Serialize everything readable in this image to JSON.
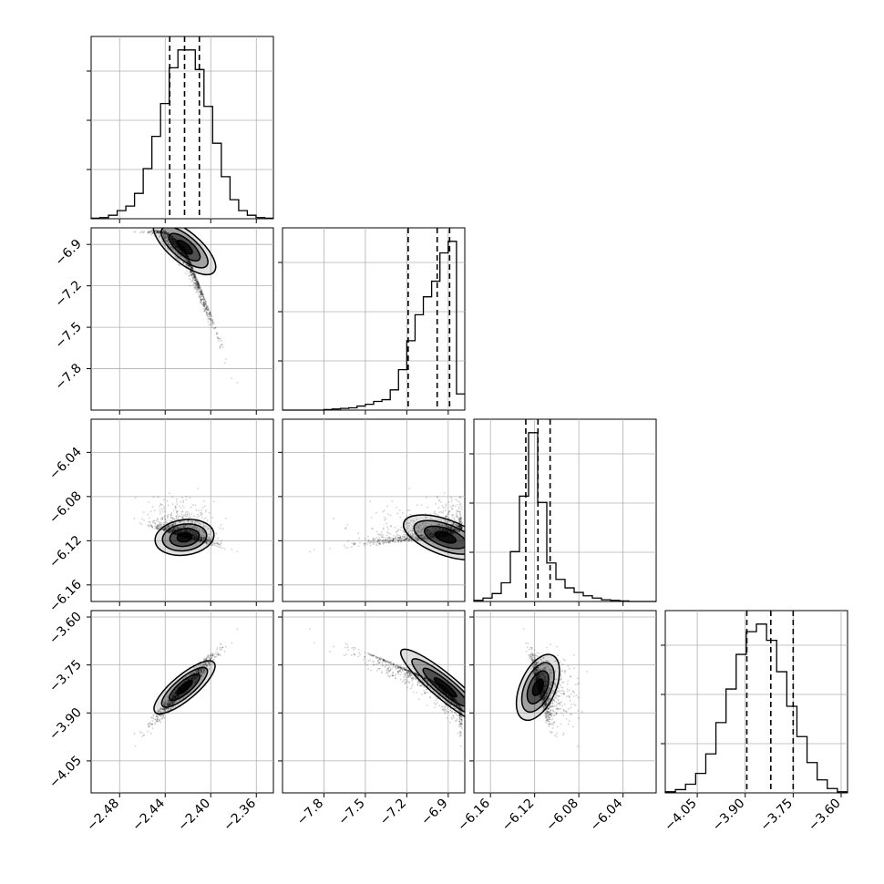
{
  "chart_data": {
    "type": "scatter",
    "subtype": "corner-plot",
    "n_params": 4,
    "grid": true,
    "colors": {
      "line": "#000000",
      "grid": "#b0b0b0",
      "points": "#000000",
      "density_fill": "#000000"
    },
    "params": [
      {
        "tick_labels": [
          "−2.48",
          "−2.44",
          "−2.40",
          "−2.36"
        ],
        "ticks": [
          -2.48,
          -2.44,
          -2.4,
          -2.36
        ],
        "range": [
          -2.505,
          -2.345
        ],
        "quantiles": [
          -2.436,
          -2.423,
          -2.41
        ],
        "peak": -2.423,
        "sigma": 0.013
      },
      {
        "tick_labels": [
          "−7.8",
          "−7.5",
          "−7.2",
          "−6.9"
        ],
        "ticks": [
          -7.8,
          -7.5,
          -7.2,
          -6.9
        ],
        "range": [
          -8.1,
          -6.78
        ],
        "quantiles": [
          -7.19,
          -6.98,
          -6.89
        ],
        "peak": -6.92,
        "sigma": 0.16
      },
      {
        "tick_labels": [
          "−6.16",
          "−6.12",
          "−6.08",
          "−6.04"
        ],
        "ticks": [
          -6.16,
          -6.12,
          -6.08,
          -6.04
        ],
        "range": [
          -6.175,
          -6.01
        ],
        "quantiles": [
          -6.128,
          -6.117,
          -6.106
        ],
        "peak": -6.117,
        "sigma": 0.008
      },
      {
        "tick_labels": [
          "−4.05",
          "−3.90",
          "−3.75",
          "−3.60"
        ],
        "ticks": [
          -4.05,
          -3.9,
          -3.75,
          -3.6
        ],
        "range": [
          -4.15,
          -3.58
        ],
        "quantiles": [
          -3.895,
          -3.82,
          -3.75
        ],
        "peak": -3.82,
        "sigma": 0.055
      }
    ],
    "histograms": [
      {
        "param": 0,
        "values": [
          1,
          2,
          6,
          14,
          22,
          44,
          87,
          143,
          200,
          262,
          293,
          293,
          259,
          195,
          131,
          73,
          33,
          14,
          6,
          2,
          1
        ]
      },
      {
        "param": 1,
        "values": [
          0,
          0,
          0,
          0,
          0,
          1,
          2,
          3,
          4,
          7,
          10,
          15,
          18,
          35,
          70,
          120,
          165,
          196,
          223,
          272,
          292,
          28
        ]
      },
      {
        "param": 2,
        "values": [
          2,
          6,
          14,
          33,
          88,
          186,
          298,
          175,
          68,
          39,
          24,
          16,
          10,
          6,
          3,
          2,
          1,
          0,
          0,
          0
        ]
      },
      {
        "param": 3,
        "values": [
          1,
          3,
          8,
          18,
          36,
          65,
          96,
          128,
          149,
          156,
          141,
          112,
          80,
          52,
          28,
          12,
          4,
          1
        ]
      }
    ],
    "contour_levels": [
      "0.5σ",
      "1σ",
      "1.5σ",
      "2σ"
    ]
  }
}
